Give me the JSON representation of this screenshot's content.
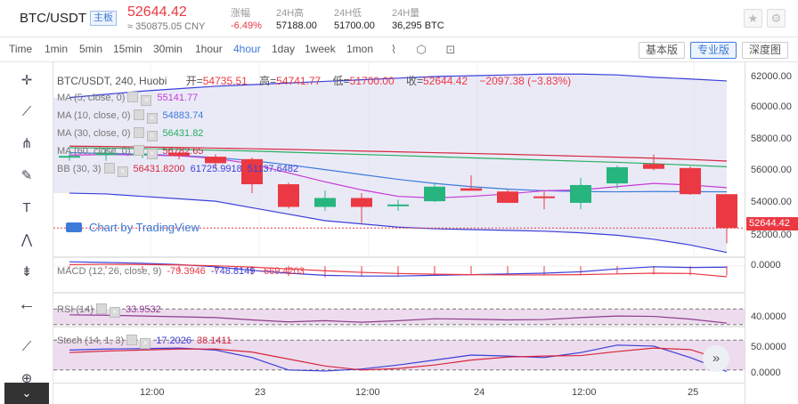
{
  "header": {
    "pair": "BTC/USDT",
    "tag": "主板",
    "last_price": "52644.42",
    "cny": "≈ 350875.05 CNY",
    "stats": [
      {
        "label": "涨幅",
        "value": "-6.49%",
        "color": "#ea3943"
      },
      {
        "label": "24H高",
        "value": "57188.00",
        "color": "#222"
      },
      {
        "label": "24H低",
        "value": "51700.00",
        "color": "#222"
      },
      {
        "label": "24H量",
        "value": "36,295 BTC",
        "color": "#222"
      }
    ],
    "icons": [
      "star-icon",
      "settings-icon"
    ]
  },
  "toolbar": {
    "timeframes": [
      "Time",
      "1min",
      "5min",
      "15min",
      "30min",
      "1hour",
      "4hour",
      "1day",
      "1week",
      "1mon"
    ],
    "active_timeframe": "4hour",
    "versions": [
      "基本版",
      "专业版",
      "深度图"
    ],
    "active_version": "专业版"
  },
  "left_tools": [
    "crosshair-icon",
    "trend-line-icon",
    "pitchfork-icon",
    "brush-icon",
    "text-icon",
    "pattern-icon",
    "measure-icon",
    "back-arrow-icon",
    "ruler-icon",
    "zoom-in-icon"
  ],
  "legend": {
    "title": "BTC/USDT, 240, Huobi",
    "open_label": "开=",
    "open": "54735.51",
    "high_label": "高=",
    "high": "54741.77",
    "low_label": "低=",
    "low": "51700.00",
    "close_label": "收=",
    "close": "52644.42",
    "change": "−2097.38 (−3.83%)"
  },
  "indicators": [
    {
      "name": "MA (5, close, 0)",
      "vals": [
        "55141.77"
      ],
      "colors": [
        "#c63ad6"
      ]
    },
    {
      "name": "MA (10, close, 0)",
      "vals": [
        "54883.74"
      ],
      "colors": [
        "#3d7bd9"
      ]
    },
    {
      "name": "MA (30, close, 0)",
      "vals": [
        "56431.82"
      ],
      "colors": [
        "#27ae60"
      ]
    },
    {
      "name": "MA (60, close, 0)",
      "vals": [
        "56782.65"
      ],
      "colors": [
        "#d7263d"
      ]
    },
    {
      "name": "BB (30, 3)",
      "vals": [
        "56431.8200",
        "61725.9918",
        "51137.6482"
      ],
      "colors": [
        "#d7263d",
        "#3a3fd9",
        "#3a3fd9"
      ]
    }
  ],
  "tradingview_label": "Chart by TradingView",
  "macd": {
    "name": "MACD (12, 26, close, 9)",
    "vals": [
      "-79.3946",
      "-748.8149",
      "-669.4203"
    ]
  },
  "rsi": {
    "name": "RSI (14)",
    "val": "33.9532"
  },
  "stoch": {
    "name": "Stoch (14, 1, 3)",
    "k": "17.2026",
    "d": "38.1411"
  },
  "y_axis": {
    "price_ticks": [
      "62000.00",
      "60000.00",
      "58000.00",
      "56000.00",
      "54000.00",
      "52000.00"
    ],
    "current_price": "52644.42",
    "macd_tick": "0.0000",
    "rsi_tick": "40.0000",
    "stoch_ticks": [
      "50.0000",
      "0.0000"
    ]
  },
  "x_axis": {
    "labels": [
      "12:00",
      "23",
      "12:00",
      "24",
      "12:00",
      "25"
    ]
  },
  "chart_data": {
    "type": "candlestick",
    "interval": "240",
    "ylim": [
      51200,
      62400
    ],
    "candles": [
      {
        "o": 57050,
        "c": 57100,
        "h": 57300,
        "l": 56800
      },
      {
        "o": 57150,
        "c": 57300,
        "h": 57550,
        "l": 56800
      },
      {
        "o": 57250,
        "c": 57250,
        "h": 57500,
        "l": 56950
      },
      {
        "o": 57300,
        "c": 57100,
        "h": 57350,
        "l": 56900
      },
      {
        "o": 57050,
        "c": 56650,
        "h": 57200,
        "l": 56300
      },
      {
        "o": 56900,
        "c": 55350,
        "h": 57000,
        "l": 54800
      },
      {
        "o": 55350,
        "c": 53950,
        "h": 55450,
        "l": 53850
      },
      {
        "o": 53950,
        "c": 54500,
        "h": 54950,
        "l": 53700
      },
      {
        "o": 54500,
        "c": 53950,
        "h": 54800,
        "l": 52950
      },
      {
        "o": 54050,
        "c": 54100,
        "h": 54400,
        "l": 53700
      },
      {
        "o": 54300,
        "c": 55200,
        "h": 55450,
        "l": 54250
      },
      {
        "o": 55100,
        "c": 54950,
        "h": 55900,
        "l": 54950
      },
      {
        "o": 54900,
        "c": 54200,
        "h": 55000,
        "l": 54200
      },
      {
        "o": 54600,
        "c": 54550,
        "h": 54950,
        "l": 53800
      },
      {
        "o": 54200,
        "c": 55300,
        "h": 55750,
        "l": 53800
      },
      {
        "o": 55400,
        "c": 56400,
        "h": 56500,
        "l": 55100
      },
      {
        "o": 56600,
        "c": 56300,
        "h": 57188,
        "l": 56200
      },
      {
        "o": 56350,
        "c": 54735,
        "h": 56450,
        "l": 54700
      },
      {
        "o": 54735,
        "c": 52644,
        "h": 54742,
        "l": 51700
      }
    ],
    "ma5": [
      57150,
      57180,
      57160,
      57100,
      56950,
      56600,
      56050,
      55500,
      55000,
      54600,
      54500,
      54600,
      54750,
      54950,
      55000,
      55200,
      55400,
      55300,
      55140
    ],
    "ma10": [
      57300,
      57250,
      57200,
      57120,
      57000,
      56800,
      56550,
      56250,
      55950,
      55650,
      55400,
      55200,
      55050,
      54950,
      54900,
      54880,
      54900,
      54890,
      54880
    ],
    "ma30": [
      57600,
      57580,
      57550,
      57500,
      57450,
      57400,
      57330,
      57260,
      57190,
      57120,
      57050,
      56980,
      56910,
      56840,
      56770,
      56700,
      56620,
      56530,
      56430
    ],
    "ma60": [
      57700,
      57680,
      57650,
      57620,
      57580,
      57540,
      57500,
      57450,
      57400,
      57350,
      57300,
      57250,
      57200,
      57140,
      57080,
      57020,
      56960,
      56880,
      56780
    ],
    "bb_upper": [
      60700,
      60900,
      61100,
      61250,
      61400,
      61500,
      61600,
      61700,
      61800,
      61900,
      62000,
      62050,
      62100,
      62150,
      62150,
      62100,
      61950,
      61850,
      61730
    ],
    "bb_lower": [
      54800,
      54750,
      54600,
      54450,
      54300,
      53900,
      53500,
      53100,
      52900,
      52700,
      52600,
      52550,
      52500,
      52450,
      52350,
      52200,
      51950,
      51600,
      51140
    ],
    "macd_hist": [
      -150,
      -200,
      -250,
      -300,
      -400,
      -600,
      -700,
      -800,
      -750,
      -700,
      -650,
      -600,
      -550,
      -600,
      -600,
      -550,
      -600,
      -650,
      -670
    ],
    "macd_line": [
      300,
      250,
      200,
      100,
      -50,
      -300,
      -500,
      -650,
      -700,
      -700,
      -650,
      -600,
      -550,
      -500,
      -400,
      -200,
      -50,
      -100,
      -79
    ],
    "macd_signal": [
      100,
      120,
      110,
      80,
      20,
      -80,
      -200,
      -330,
      -440,
      -520,
      -570,
      -600,
      -620,
      -620,
      -600,
      -550,
      -500,
      -520,
      -748
    ],
    "rsi": [
      55,
      54,
      52,
      50,
      48,
      42,
      37,
      40,
      36,
      40,
      45,
      44,
      42,
      43,
      48,
      52,
      51,
      44,
      34
    ],
    "stoch_k": [
      60,
      62,
      63,
      64,
      60,
      45,
      20,
      18,
      22,
      30,
      40,
      50,
      48,
      45,
      55,
      70,
      68,
      45,
      17
    ],
    "stoch_d": [
      55,
      58,
      60,
      62,
      62,
      56,
      42,
      28,
      20,
      23,
      30,
      40,
      46,
      48,
      49,
      57,
      64,
      61,
      38
    ]
  }
}
